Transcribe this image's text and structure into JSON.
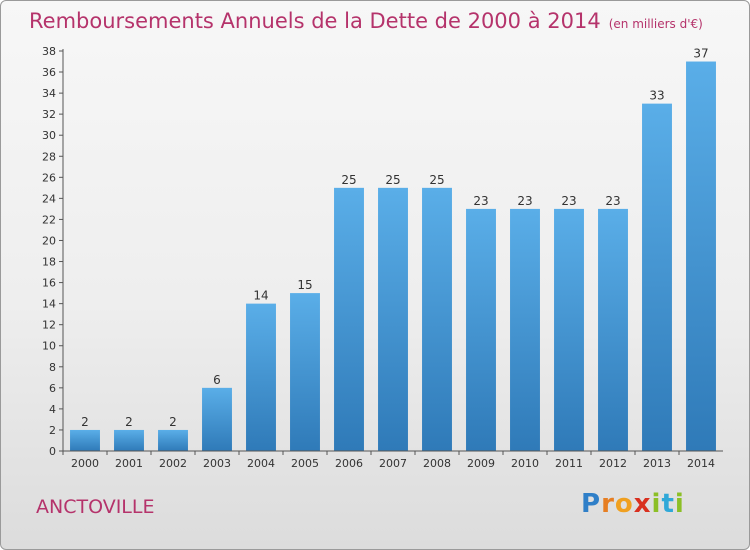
{
  "header": {
    "title": "Remboursements Annuels de la Dette de 2000 à 2014",
    "subtitle": "(en milliers d'€)"
  },
  "footer": {
    "commune": "ANCTOVILLE",
    "logo_letters": [
      "P",
      "r",
      "o",
      "x",
      "i",
      "t",
      "i"
    ],
    "logo_colors": [
      "#2f7fc8",
      "#e67e22",
      "#f0a020",
      "#d9301f",
      "#8cbf26",
      "#2fa8d8",
      "#8cbf26"
    ]
  },
  "chart_data": {
    "type": "bar",
    "title": "Remboursements Annuels de la Dette de 2000 à 2014",
    "xlabel": "",
    "ylabel": "",
    "categories": [
      "2000",
      "2001",
      "2002",
      "2003",
      "2004",
      "2005",
      "2006",
      "2007",
      "2008",
      "2009",
      "2010",
      "2011",
      "2012",
      "2013",
      "2014"
    ],
    "values": [
      2,
      2,
      2,
      6,
      14,
      15,
      25,
      25,
      25,
      23,
      23,
      23,
      23,
      33,
      37
    ],
    "ylim": [
      0,
      38
    ],
    "yticks": [
      0,
      2,
      4,
      6,
      8,
      10,
      12,
      14,
      16,
      18,
      20,
      22,
      24,
      26,
      28,
      30,
      32,
      34,
      36,
      38
    ],
    "grid": false,
    "legend": "none",
    "colors": {
      "bar_top": "#5aaee8",
      "bar_bottom": "#2f7ab8",
      "axis": "#555555",
      "text": "#333333"
    }
  }
}
